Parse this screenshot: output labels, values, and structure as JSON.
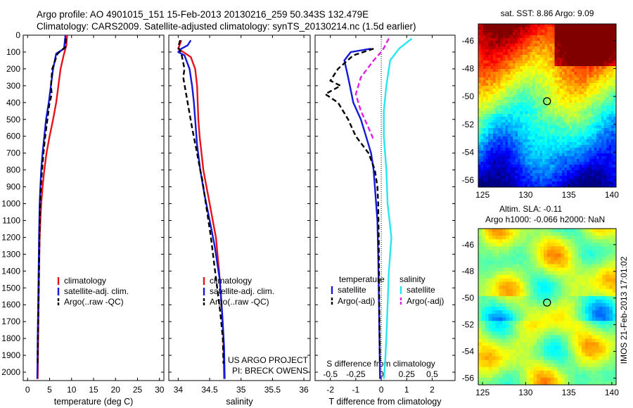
{
  "header": {
    "line1": "Argo profile: AO 4901015_151 15-Feb-2013 20130216_259 50.343S 132.479E",
    "line2": "Climatology: CARS2009. Satellite-adjusted climatology: synTS_20130214.nc (1.5d earlier)"
  },
  "colors": {
    "climatology": "#e8131a",
    "satellite": "#1418d8",
    "argo": "#000000",
    "salinity_satellite": "#28e6ee",
    "salinity_argo": "#e21ee2"
  },
  "chart_data": [
    {
      "type": "line",
      "xlabel": "temperature (deg C)",
      "ylabel": "",
      "xlim": [
        -1,
        31
      ],
      "ylim": [
        2050,
        0
      ],
      "xticks": [
        0,
        5,
        10,
        15,
        20,
        25,
        30
      ],
      "xtick_labels": [
        "0",
        "5",
        "10",
        "15",
        "20",
        "25",
        "30"
      ],
      "yticks": [
        0,
        100,
        200,
        300,
        400,
        500,
        600,
        700,
        800,
        900,
        1000,
        1100,
        1200,
        1300,
        1400,
        1500,
        1600,
        1700,
        1800,
        1900,
        2000
      ],
      "ytick_labels": [
        "0",
        "100",
        "200",
        "300",
        "400",
        "500",
        "600",
        "700",
        "800",
        "900",
        "1000",
        "1100",
        "1200",
        "1300",
        "1400",
        "1500",
        "1600",
        "1700",
        "1800",
        "1900",
        "2000"
      ],
      "legend_position": "lower-right",
      "series": [
        {
          "name": "climatology",
          "color": "climatology",
          "dash": false,
          "x": [
            9.0,
            8.8,
            8.2,
            7.5,
            7.0,
            6.5,
            5.8,
            5.0,
            4.3,
            3.8,
            3.4,
            3.1,
            2.9,
            2.75,
            2.6,
            2.5,
            2.4,
            2.35,
            2.3
          ],
          "y": [
            0,
            60,
            120,
            200,
            300,
            400,
            500,
            600,
            700,
            800,
            900,
            1000,
            1100,
            1200,
            1400,
            1600,
            1800,
            1950,
            2040
          ]
        },
        {
          "name": "satellite-adj. clim.",
          "color": "satellite",
          "dash": false,
          "x": [
            8.6,
            8.3,
            6.5,
            5.8,
            5.3,
            4.8,
            4.2,
            3.8,
            3.4,
            3.1,
            2.9,
            2.75,
            2.6,
            2.5,
            2.4,
            2.3,
            2.25,
            2.2
          ],
          "y": [
            0,
            80,
            110,
            200,
            300,
            400,
            500,
            600,
            700,
            800,
            900,
            1000,
            1200,
            1400,
            1600,
            1800,
            1950,
            2040
          ]
        },
        {
          "name": "Argo(..raw -QC)",
          "color": "argo",
          "dash": true,
          "x": [
            8.7,
            8.6,
            6.8,
            5.6,
            5.3,
            5.5,
            5.0,
            4.5,
            4.0,
            3.6,
            3.3,
            3.0,
            2.85,
            2.7,
            2.6,
            2.45,
            2.35,
            2.3
          ],
          "y": [
            20,
            70,
            110,
            200,
            300,
            350,
            400,
            500,
            600,
            700,
            800,
            900,
            1000,
            1200,
            1400,
            1600,
            1800,
            1950
          ]
        }
      ]
    },
    {
      "type": "line",
      "xlabel": "salinity",
      "ylabel": "",
      "xlim": [
        33.85,
        36.1
      ],
      "ylim": [
        2050,
        0
      ],
      "xticks": [
        34,
        34.5,
        35,
        35.5,
        36
      ],
      "xtick_labels": [
        "34",
        "34.5",
        "35",
        "35.5",
        "36"
      ],
      "annotations": [
        "US ARGO PROJECT",
        "PI: BRECK OWENS"
      ],
      "legend_position": "lower-right",
      "series": [
        {
          "name": "climatology",
          "color": "climatology",
          "dash": false,
          "x": [
            34.05,
            34.0,
            34.2,
            34.27,
            34.3,
            34.31,
            34.32,
            34.34,
            34.37,
            34.4,
            34.45,
            34.5,
            34.55,
            34.6,
            34.65,
            34.69,
            34.72,
            34.73
          ],
          "y": [
            30,
            80,
            130,
            200,
            300,
            400,
            500,
            600,
            700,
            800,
            900,
            1000,
            1100,
            1200,
            1400,
            1600,
            1800,
            2040
          ]
        },
        {
          "name": "satellite-adj. clim.",
          "color": "satellite",
          "dash": false,
          "x": [
            34.2,
            34.15,
            34.05,
            34.0,
            34.1,
            34.18,
            34.22,
            34.25,
            34.27,
            34.3,
            34.35,
            34.42,
            34.5,
            34.58,
            34.66,
            34.7,
            34.73,
            34.74
          ],
          "y": [
            30,
            60,
            80,
            100,
            120,
            200,
            300,
            400,
            500,
            650,
            800,
            950,
            1100,
            1250,
            1450,
            1650,
            1850,
            2040
          ]
        },
        {
          "name": "Argo(..raw -QC)",
          "color": "argo",
          "dash": true,
          "x": [
            34.03,
            34.0,
            34.05,
            34.1,
            34.08,
            34.15,
            34.22,
            34.3,
            34.35,
            34.38,
            34.42,
            34.46,
            34.52,
            34.57,
            34.62,
            34.67,
            34.71,
            34.72
          ],
          "y": [
            30,
            70,
            110,
            200,
            250,
            400,
            550,
            700,
            800,
            850,
            950,
            1050,
            1200,
            1350,
            1500,
            1650,
            1800,
            1950
          ]
        }
      ]
    },
    {
      "type": "line",
      "xlabel": "T difference from climatology",
      "xlabel_top": "S difference from climatology",
      "xlim": [
        -2.6,
        2.9
      ],
      "ylim": [
        2050,
        0
      ],
      "xticks": [
        -2,
        -1,
        0,
        1,
        2
      ],
      "xtick_labels": [
        "-2",
        "-1",
        "0",
        "1",
        "2"
      ],
      "xticks_top": [
        -2,
        -1,
        0,
        1,
        2
      ],
      "xtick_labels_top": [
        "-0.5",
        "-0.25",
        "0",
        "0.25",
        "0.5"
      ],
      "legend_position": "lower",
      "legend_group_titles": [
        "temperature",
        "salinity"
      ],
      "series": [
        {
          "name": "satellite",
          "group": "temperature",
          "color": "satellite",
          "dash": false,
          "x": [
            -0.4,
            -1.2,
            -1.45,
            -1.3,
            -1.1,
            -0.8,
            -0.6,
            -0.4,
            -0.3,
            -0.25,
            -0.2,
            -0.15,
            -0.12,
            -0.1,
            -0.08,
            -0.05
          ],
          "y": [
            80,
            100,
            150,
            250,
            400,
            500,
            600,
            700,
            800,
            900,
            1000,
            1100,
            1300,
            1500,
            1700,
            2040
          ]
        },
        {
          "name": "Argo(-adj)",
          "group": "temperature",
          "color": "argo",
          "dash": true,
          "x": [
            -0.3,
            -1.1,
            -1.7,
            -2.0,
            -1.6,
            -2.2,
            -1.7,
            -1.3,
            -1.0,
            -0.5,
            -0.25,
            -0.15,
            -0.12,
            -0.1,
            -0.08,
            -0.05
          ],
          "y": [
            80,
            120,
            200,
            270,
            300,
            350,
            400,
            500,
            600,
            700,
            800,
            900,
            1000,
            1200,
            1600,
            1950
          ]
        },
        {
          "name": "satellite",
          "group": "salinity",
          "color": "salinity_satellite",
          "dash": false,
          "x": [
            1.2,
            0.7,
            0.35,
            0.2,
            0.1,
            0.1,
            0.15,
            0.2,
            0.25,
            0.4,
            0.35,
            0.3,
            0.25,
            0.2,
            0.15,
            0.1
          ],
          "y": [
            20,
            80,
            150,
            300,
            450,
            600,
            700,
            800,
            1000,
            1200,
            1300,
            1400,
            1600,
            1800,
            1950,
            2040
          ]
        },
        {
          "name": "Argo(-adj)",
          "group": "salinity",
          "color": "salinity_argo",
          "dash": true,
          "x": [
            0.3,
            0.05,
            -0.3,
            -0.8,
            -1.0,
            -0.8,
            -0.5,
            -0.3
          ],
          "y": [
            20,
            90,
            150,
            250,
            350,
            450,
            550,
            620
          ]
        }
      ]
    },
    {
      "type": "heatmap",
      "title": "sat. SST: 8.86 Argo: 9.09",
      "xlim": [
        124.5,
        140.5
      ],
      "ylim": [
        -56.5,
        -44.8
      ],
      "xticks": [
        125,
        130,
        135,
        140
      ],
      "xtick_labels": [
        "125",
        "130",
        "135",
        "140"
      ],
      "yticks": [
        -46,
        -48,
        -50,
        -52,
        -54,
        -56
      ],
      "ytick_labels": [
        "-46",
        "-48",
        "-50",
        "-52",
        "-54",
        "-56"
      ],
      "marker": {
        "lon": 132.48,
        "lat": -50.34
      }
    },
    {
      "type": "heatmap",
      "title_lines": [
        "Altim. SLA: -0.11",
        "Argo h1000: -0.066 h2000: NaN"
      ],
      "side_label": "IMOS 21-Feb-2013 17:01:02",
      "xlim": [
        124.5,
        140.5
      ],
      "ylim": [
        -56.5,
        -44.8
      ],
      "xticks": [
        125,
        130,
        135,
        140
      ],
      "xtick_labels": [
        "125",
        "130",
        "135",
        "140"
      ],
      "yticks": [
        -46,
        -48,
        -50,
        -52,
        -54,
        -56
      ],
      "ytick_labels": [
        "-46",
        "-48",
        "-50",
        "-52",
        "-54",
        "-56"
      ],
      "marker": {
        "lon": 132.48,
        "lat": -50.34
      }
    }
  ]
}
